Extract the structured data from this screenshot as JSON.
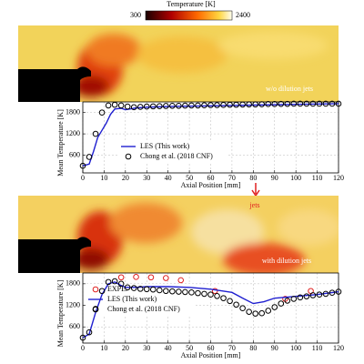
{
  "colorbar": {
    "title": "Temperature [K]",
    "min_label": "300",
    "max_label": "2400"
  },
  "fields": [
    {
      "label": "w/o dilution jets"
    },
    {
      "label": "with dilution jets",
      "annotation": "jets"
    }
  ],
  "chart_data": [
    {
      "type": "line",
      "xlabel": "Axial Position [mm]",
      "ylabel": "Mean Temperature [K]",
      "xlim": [
        0,
        120
      ],
      "xticks": [
        0,
        10,
        20,
        30,
        40,
        50,
        60,
        70,
        80,
        90,
        100,
        110,
        120
      ],
      "ylim": [
        100,
        2100
      ],
      "yticks": [
        600,
        1200,
        1800
      ],
      "grid": true,
      "legend": "lower center",
      "series": [
        {
          "name": "LES (This work)",
          "color": "#1f1fd0",
          "style": "line",
          "x": [
            0,
            3,
            5,
            7,
            9,
            11,
            13,
            15,
            18,
            20,
            22,
            25,
            30,
            40,
            60,
            80,
            100,
            120
          ],
          "values": [
            300,
            350,
            700,
            1100,
            1300,
            1500,
            1750,
            1900,
            1920,
            1880,
            1900,
            1930,
            1950,
            1970,
            1990,
            2010,
            2030,
            2050
          ]
        },
        {
          "name": "Chong et al. (2018 CNF)",
          "color": "#000000",
          "style": "marker",
          "x": [
            0,
            3,
            6,
            9,
            12,
            15,
            18,
            21,
            24,
            27,
            30,
            33,
            36,
            39,
            42,
            45,
            48,
            51,
            54,
            57,
            60,
            63,
            66,
            69,
            72,
            75,
            78,
            81,
            84,
            87,
            90,
            93,
            96,
            99,
            102,
            105,
            108,
            111,
            114,
            117,
            120
          ],
          "values": [
            300,
            550,
            1200,
            1800,
            2000,
            2020,
            2000,
            1970,
            1950,
            1960,
            1970,
            1975,
            1980,
            1985,
            1990,
            1990,
            1995,
            2000,
            2000,
            2005,
            2010,
            2010,
            2015,
            2020,
            2020,
            2025,
            2030,
            2030,
            2035,
            2040,
            2040,
            2045,
            2045,
            2050,
            2050,
            2050,
            2050,
            2050,
            2050,
            2050,
            2050
          ]
        }
      ]
    },
    {
      "type": "line",
      "xlabel": "Axial Position [mm]",
      "ylabel": "Mean Temperature [K]",
      "xlim": [
        0,
        120
      ],
      "xticks": [
        0,
        10,
        20,
        30,
        40,
        50,
        60,
        70,
        80,
        90,
        100,
        110,
        120
      ],
      "ylim": [
        150,
        2100
      ],
      "yticks": [
        600,
        1200,
        1800
      ],
      "grid": true,
      "legend": "center left",
      "series": [
        {
          "name": "EXPE.",
          "color": "#e02020",
          "style": "marker",
          "x": [
            18,
            25,
            32,
            39,
            46,
            62,
            95,
            107
          ],
          "values": [
            1980,
            1990,
            1980,
            1960,
            1900,
            1600,
            1380,
            1600
          ]
        },
        {
          "name": "LES (This work)",
          "color": "#1f1fd0",
          "style": "line",
          "x": [
            0,
            3,
            6,
            9,
            12,
            15,
            18,
            20,
            25,
            30,
            40,
            50,
            60,
            70,
            75,
            80,
            85,
            90,
            100,
            110,
            120
          ],
          "values": [
            300,
            400,
            1000,
            1500,
            1800,
            1850,
            1750,
            1700,
            1700,
            1720,
            1720,
            1700,
            1650,
            1560,
            1400,
            1250,
            1300,
            1400,
            1450,
            1500,
            1580
          ]
        },
        {
          "name": "Chong et al. (2018 CNF)",
          "color": "#000000",
          "style": "marker",
          "x": [
            0,
            3,
            6,
            9,
            12,
            15,
            18,
            21,
            24,
            27,
            30,
            33,
            36,
            39,
            42,
            45,
            48,
            51,
            54,
            57,
            60,
            63,
            66,
            69,
            72,
            75,
            78,
            81,
            84,
            87,
            90,
            93,
            96,
            99,
            102,
            105,
            108,
            111,
            114,
            117,
            120
          ],
          "values": [
            300,
            450,
            1100,
            1600,
            1850,
            1870,
            1800,
            1700,
            1680,
            1660,
            1650,
            1640,
            1620,
            1600,
            1590,
            1580,
            1570,
            1560,
            1540,
            1520,
            1500,
            1460,
            1400,
            1320,
            1220,
            1120,
            1020,
            970,
            980,
            1050,
            1150,
            1250,
            1330,
            1380,
            1420,
            1450,
            1480,
            1500,
            1520,
            1550,
            1580
          ]
        }
      ]
    }
  ]
}
